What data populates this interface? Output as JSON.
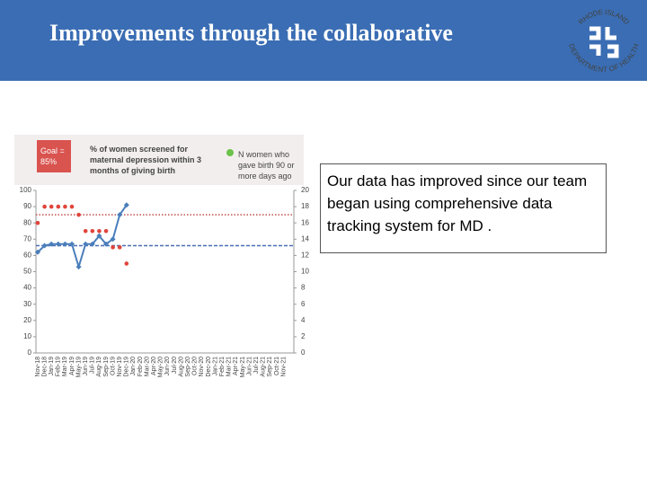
{
  "header": {
    "title": "Improvements through the collaborative"
  },
  "logo": {
    "top": "RHODE ISLAND",
    "bottom": "DEPARTMENT OF HEALTH"
  },
  "textbox": {
    "text": "Our data has improved since our team began using  comprehensive data tracking system for MD ."
  },
  "chart_data": {
    "type": "line",
    "goal_label": "Goal = 85%",
    "goal": 85,
    "goal_color": "#c0504d",
    "mean_line": 66,
    "mean_color": "#4a6fb5",
    "categories": [
      "Nov-18",
      "Dec-18",
      "Jan-19",
      "Feb-19",
      "Mar-19",
      "Apr-19",
      "May-19",
      "Jun-19",
      "Jul-19",
      "Aug-19",
      "Sep-19",
      "Oct-19",
      "Nov-19",
      "Dec-19",
      "Jan-20",
      "Feb-20",
      "Mar-20",
      "Apr-20",
      "May-20",
      "Jun-20",
      "Jul-20",
      "Aug-20",
      "Sep-20",
      "Oct-20",
      "Nov-20",
      "Dec-20",
      "Jan-21",
      "Feb-21",
      "Mar-21",
      "Apr-21",
      "May-21",
      "Jun-21",
      "Jul-21",
      "Aug-21",
      "Sep-21",
      "Oct-21",
      "Nov-21"
    ],
    "series": [
      {
        "name": "% of women screened for maternal depression within 3 months of giving birth",
        "color": "#4a7ebb",
        "style": "line",
        "values": [
          62,
          66,
          67,
          67,
          67,
          67,
          53,
          67,
          67,
          72,
          67,
          70,
          85,
          91,
          null,
          null,
          null,
          null,
          null,
          null,
          null,
          null,
          null,
          null,
          null,
          null,
          null,
          null,
          null,
          null,
          null,
          null,
          null,
          null,
          null,
          null,
          null
        ]
      },
      {
        "name": "N women who gave birth 90 or more days ago",
        "color": "#e0453a",
        "legend_color": "#6cc24a",
        "style": "dots",
        "axis": "y2",
        "values": [
          16,
          18,
          18,
          18,
          18,
          18,
          17,
          15,
          15,
          15,
          15,
          13,
          13,
          11,
          null,
          null,
          null,
          null,
          null,
          null,
          null,
          null,
          null,
          null,
          null,
          null,
          null,
          null,
          null,
          null,
          null,
          null,
          null,
          null,
          null,
          null,
          null
        ]
      }
    ],
    "ylim": [
      0,
      100
    ],
    "yticks": [
      0,
      10,
      20,
      30,
      40,
      50,
      60,
      70,
      80,
      90,
      100
    ],
    "y2lim": [
      0,
      20
    ],
    "y2ticks": [
      0,
      2,
      4,
      6,
      8,
      10,
      12,
      14,
      16,
      18,
      20
    ]
  }
}
